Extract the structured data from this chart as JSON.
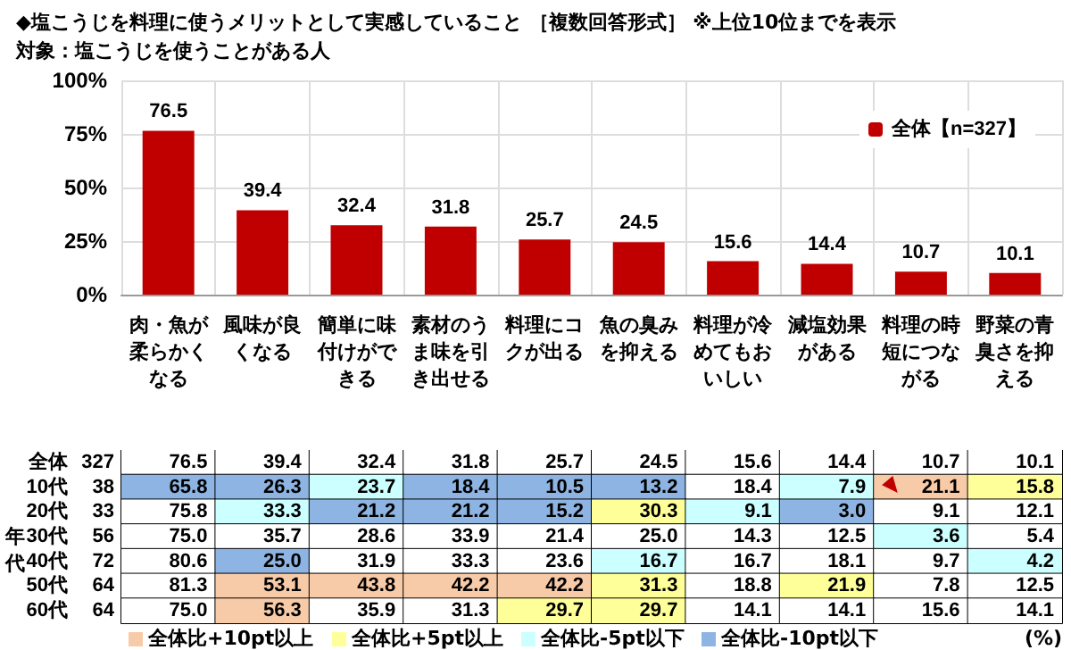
{
  "chart_data": [
    {
      "type": "bar",
      "title": "◆塩こうじを料理に使うメリットとして実感していること ［複数回答形式］ ※上位10位までを表示",
      "subtitle": "対象：塩こうじを使うことがある人",
      "categories": [
        "肉・魚が柔らかくなる",
        "風味が良くなる",
        "簡単に味付けができる",
        "素材のうま味を引き出せる",
        "料理にコクが出る",
        "魚の臭みを抑える",
        "料理が冷めてもおいしい",
        "減塩効果がある",
        "料理の時短につながる",
        "野菜の青臭さを抑える"
      ],
      "series": [
        {
          "name": "全体【n=327】",
          "color": "#c00000",
          "values": [
            76.5,
            39.4,
            32.4,
            31.8,
            25.7,
            24.5,
            15.6,
            14.4,
            10.7,
            10.1
          ],
          "value_labels": [
            "76.5",
            "39.4",
            "32.4",
            "31.8",
            "25.7",
            "24.5",
            "15.6",
            "14.4",
            "10.7",
            "10.1"
          ]
        }
      ],
      "ylim": [
        0,
        100
      ],
      "yticks": [
        {
          "value": 0,
          "label": "0%"
        },
        {
          "value": 25,
          "label": "25%"
        },
        {
          "value": 50,
          "label": "50%"
        },
        {
          "value": 75,
          "label": "75%"
        },
        {
          "value": 100,
          "label": "100%"
        }
      ],
      "grid": true,
      "legend": "top right"
    },
    {
      "type": "heatmap",
      "categories": [
        "肉・魚が柔らかくなる",
        "風味が良くなる",
        "簡単に味付けができる",
        "素材のうま味を引き出せる",
        "料理にコクが出る",
        "魚の臭みを抑える",
        "料理が冷めてもおいしい",
        "減塩効果がある",
        "料理の時短につながる",
        "野菜の青臭さを抑える"
      ],
      "y_categories": [
        "全体",
        "10代",
        "20代",
        "30代",
        "40代",
        "50代",
        "60代"
      ],
      "y2_categories": [
        "327",
        "38",
        "33",
        "56",
        "72",
        "64",
        "64"
      ],
      "cells": [
        [
          76.5,
          39.4,
          32.4,
          31.8,
          25.7,
          24.5,
          15.6,
          14.4,
          10.7,
          10.1
        ],
        [
          65.8,
          26.3,
          23.7,
          18.4,
          10.5,
          13.2,
          18.4,
          7.9,
          21.1,
          15.8
        ],
        [
          75.8,
          33.3,
          21.2,
          21.2,
          15.2,
          30.3,
          9.1,
          3.0,
          9.1,
          12.1
        ],
        [
          75.0,
          35.7,
          28.6,
          33.9,
          21.4,
          25.0,
          14.3,
          12.5,
          3.6,
          5.4
        ],
        [
          80.6,
          25.0,
          31.9,
          33.3,
          23.6,
          16.7,
          16.7,
          18.1,
          9.7,
          4.2
        ],
        [
          81.3,
          53.1,
          43.8,
          42.2,
          42.2,
          31.3,
          18.8,
          21.9,
          7.8,
          12.5
        ],
        [
          75.0,
          56.3,
          35.9,
          31.3,
          29.7,
          29.7,
          14.1,
          14.1,
          15.6,
          14.1
        ]
      ],
      "cell_labels": [
        [
          "76.5",
          "39.4",
          "32.4",
          "31.8",
          "25.7",
          "24.5",
          "15.6",
          "14.4",
          "10.7",
          "10.1"
        ],
        [
          "65.8",
          "26.3",
          "23.7",
          "18.4",
          "10.5",
          "13.2",
          "18.4",
          "7.9",
          "21.1",
          "15.8"
        ],
        [
          "75.8",
          "33.3",
          "21.2",
          "21.2",
          "15.2",
          "30.3",
          "9.1",
          "3.0",
          "9.1",
          "12.1"
        ],
        [
          "75.0",
          "35.7",
          "28.6",
          "33.9",
          "21.4",
          "25.0",
          "14.3",
          "12.5",
          "3.6",
          "5.4"
        ],
        [
          "80.6",
          "25.0",
          "31.9",
          "33.3",
          "23.6",
          "16.7",
          "16.7",
          "18.1",
          "9.7",
          "4.2"
        ],
        [
          "81.3",
          "53.1",
          "43.8",
          "42.2",
          "42.2",
          "31.3",
          "18.8",
          "21.9",
          "7.8",
          "12.5"
        ],
        [
          "75.0",
          "56.3",
          "35.9",
          "31.3",
          "29.7",
          "29.7",
          "14.1",
          "14.1",
          "15.6",
          "14.1"
        ]
      ],
      "colors": [
        [
          "#ffffff",
          "#ffffff",
          "#ffffff",
          "#ffffff",
          "#ffffff",
          "#ffffff",
          "#ffffff",
          "#ffffff",
          "#ffffff",
          "#ffffff"
        ],
        [
          "#8db4e2",
          "#8db4e2",
          "#ccffff",
          "#8db4e2",
          "#8db4e2",
          "#8db4e2",
          "#ffffff",
          "#ccffff",
          "#f8cba8",
          "#ffff99"
        ],
        [
          "#ffffff",
          "#ccffff",
          "#8db4e2",
          "#8db4e2",
          "#8db4e2",
          "#ffff99",
          "#ccffff",
          "#8db4e2",
          "#ffffff",
          "#ffffff"
        ],
        [
          "#ffffff",
          "#ffffff",
          "#ffffff",
          "#ffffff",
          "#ffffff",
          "#ffffff",
          "#ffffff",
          "#ffffff",
          "#ccffff",
          "#ffffff"
        ],
        [
          "#ffffff",
          "#8db4e2",
          "#ffffff",
          "#ffffff",
          "#ffffff",
          "#ccffff",
          "#ffffff",
          "#ffffff",
          "#ffffff",
          "#ccffff"
        ],
        [
          "#ffffff",
          "#f8cba8",
          "#f8cba8",
          "#f8cba8",
          "#f8cba8",
          "#ffff99",
          "#ffffff",
          "#ffff99",
          "#ffffff",
          "#ffffff"
        ],
        [
          "#ffffff",
          "#f8cba8",
          "#ffffff",
          "#ffffff",
          "#ffff99",
          "#ffff99",
          "#ffffff",
          "#ffffff",
          "#ffffff",
          "#ffffff"
        ]
      ],
      "annotations": [
        "年代",
        "全体比+10pt以上",
        "全体比+5pt以上",
        "全体比-5pt以下",
        "全体比-10pt以下",
        "(%)"
      ],
      "tick_labels": "y",
      "data_labels": true
    }
  ]
}
